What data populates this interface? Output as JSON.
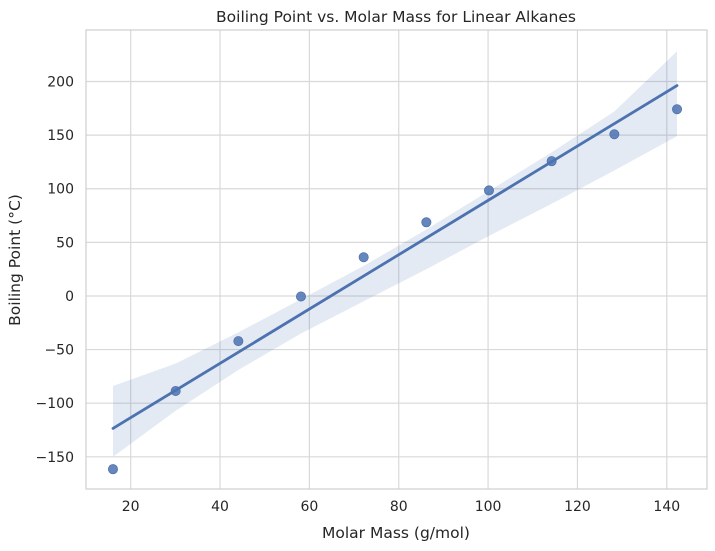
{
  "chart_data": {
    "type": "scatter",
    "title": "Boiling Point vs. Molar Mass for Linear Alkanes",
    "xlabel": "Molar Mass (g/mol)",
    "ylabel": "Boiling Point (°C)",
    "xlim": [
      10,
      149
    ],
    "ylim": [
      -180,
      248
    ],
    "xticks": [
      20,
      40,
      60,
      80,
      100,
      120,
      140
    ],
    "xtick_labels": [
      "20",
      "40",
      "60",
      "80",
      "100",
      "120",
      "140"
    ],
    "yticks": [
      -150,
      -100,
      -50,
      0,
      50,
      100,
      150,
      200
    ],
    "ytick_labels": [
      "−150",
      "−100",
      "−50",
      "0",
      "50",
      "100",
      "150",
      "200"
    ],
    "grid": true,
    "legend": "none",
    "series": [
      {
        "type": "scatter",
        "x": [
          16.04,
          30.07,
          44.1,
          58.12,
          72.15,
          86.18,
          100.2,
          114.23,
          128.26,
          142.29
        ],
        "y": [
          -161.5,
          -88.6,
          -42.1,
          -0.5,
          36.1,
          68.7,
          98.4,
          125.7,
          150.8,
          174.1
        ],
        "color": "#4c72b0"
      }
    ],
    "regression": {
      "x": [
        16.04,
        142.29
      ],
      "y": [
        -123.5,
        196.2
      ],
      "color": "#4c72b0"
    },
    "confidence_band": {
      "x": [
        16.04,
        30.07,
        44.1,
        58.12,
        72.15,
        86.18,
        100.2,
        114.23,
        128.26,
        142.29
      ],
      "upper": [
        -84,
        -63,
        -34,
        -3,
        28,
        62,
        98,
        134,
        172,
        228
      ],
      "lower": [
        -150,
        -107,
        -69,
        -35,
        -5,
        25,
        56,
        86,
        117,
        149
      ],
      "color": "#4c72b0",
      "opacity": 0.15
    }
  }
}
